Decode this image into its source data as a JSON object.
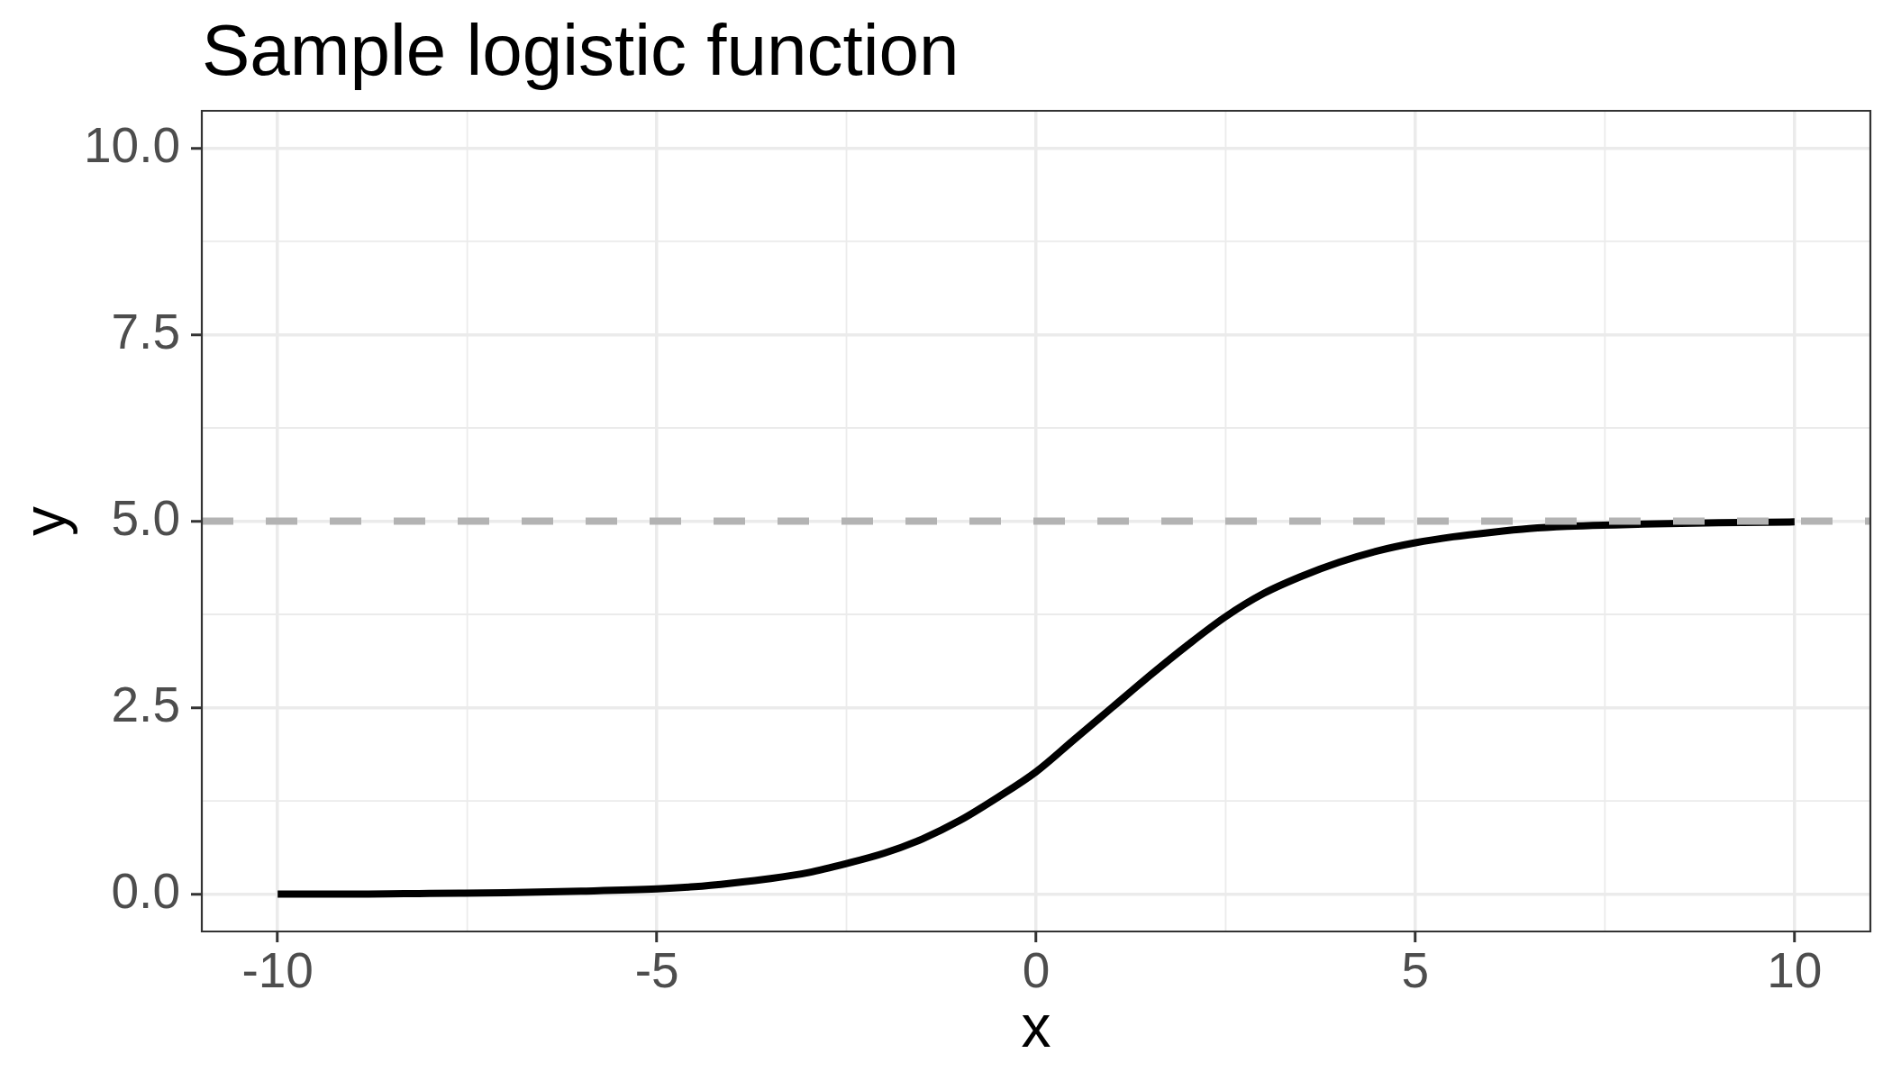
{
  "chart_data": {
    "type": "line",
    "title": "Sample logistic function",
    "xlabel": "x",
    "ylabel": "y",
    "x": [
      -10,
      -9,
      -8,
      -7,
      -6,
      -5,
      -4.5,
      -4,
      -3.5,
      -3,
      -2.5,
      -2,
      -1.5,
      -1,
      -0.5,
      0,
      0.5,
      1,
      1.5,
      2,
      2.5,
      3,
      3.5,
      4,
      4.5,
      5,
      5.5,
      6,
      6.5,
      7,
      8,
      9,
      10
    ],
    "series": [
      {
        "color": "#000000",
        "values": [
          0.0,
          0.0,
          0.01,
          0.02,
          0.04,
          0.07,
          0.1,
          0.15,
          0.21,
          0.29,
          0.41,
          0.55,
          0.74,
          0.99,
          1.3,
          1.64,
          2.07,
          2.5,
          2.93,
          3.34,
          3.72,
          4.03,
          4.26,
          4.45,
          4.6,
          4.71,
          4.79,
          4.85,
          4.9,
          4.93,
          4.96,
          4.98,
          4.99
        ]
      }
    ],
    "xlim": [
      -11,
      11
    ],
    "ylim": [
      -0.5,
      10.5
    ],
    "xticks": [
      -10,
      -5,
      0,
      5,
      10
    ],
    "yticks": [
      {
        "value": 0,
        "label": "0.0"
      },
      2.5,
      {
        "value": 5,
        "label": "5.0"
      },
      7.5,
      {
        "value": 10,
        "label": "10.0"
      }
    ],
    "ref_lines": [
      {
        "axis": "y",
        "value": 5,
        "color": "#b3b3b3",
        "line_style": "dashed"
      }
    ],
    "grid": true,
    "legend": false,
    "marker": "none",
    "line_style": "solid"
  }
}
